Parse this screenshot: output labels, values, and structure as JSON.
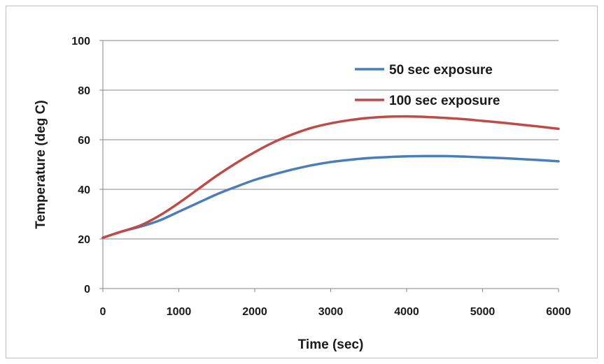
{
  "chart_data": {
    "type": "line",
    "title": "",
    "xlabel": "Time (sec)",
    "ylabel": "Temperature (deg C)",
    "xlim": [
      0,
      6000
    ],
    "ylim": [
      0,
      100
    ],
    "xticks": [
      0,
      1000,
      2000,
      3000,
      4000,
      5000,
      6000
    ],
    "yticks": [
      0,
      20,
      40,
      60,
      80,
      100
    ],
    "grid": "horizontal",
    "legend_position": "top-right",
    "series": [
      {
        "name": "50 sec exposure",
        "color": "#4a7ebb",
        "x": [
          0,
          250,
          500,
          750,
          1000,
          1250,
          1500,
          1750,
          2000,
          2250,
          2500,
          2750,
          3000,
          3250,
          3500,
          3750,
          4000,
          4250,
          4500,
          4750,
          5000,
          5250,
          5500,
          5750,
          6000
        ],
        "y": [
          20.5,
          23,
          25,
          27.5,
          31,
          34.5,
          38,
          41,
          43.8,
          46,
          48,
          49.7,
          51,
          51.9,
          52.6,
          53,
          53.3,
          53.4,
          53.4,
          53.2,
          52.9,
          52.6,
          52.2,
          51.8,
          51.3
        ]
      },
      {
        "name": "100 sec exposure",
        "color": "#be4b48",
        "x": [
          0,
          250,
          500,
          750,
          1000,
          1250,
          1500,
          1750,
          2000,
          2250,
          2500,
          2750,
          3000,
          3250,
          3500,
          3750,
          4000,
          4250,
          4500,
          4750,
          5000,
          5250,
          5500,
          5750,
          6000
        ],
        "y": [
          20.5,
          23,
          25.5,
          29.5,
          34.5,
          40,
          45.5,
          50.5,
          55,
          59,
          62.2,
          64.8,
          66.6,
          67.9,
          68.8,
          69.3,
          69.4,
          69.2,
          68.8,
          68.3,
          67.6,
          66.9,
          66.1,
          65.3,
          64.4
        ]
      }
    ]
  }
}
